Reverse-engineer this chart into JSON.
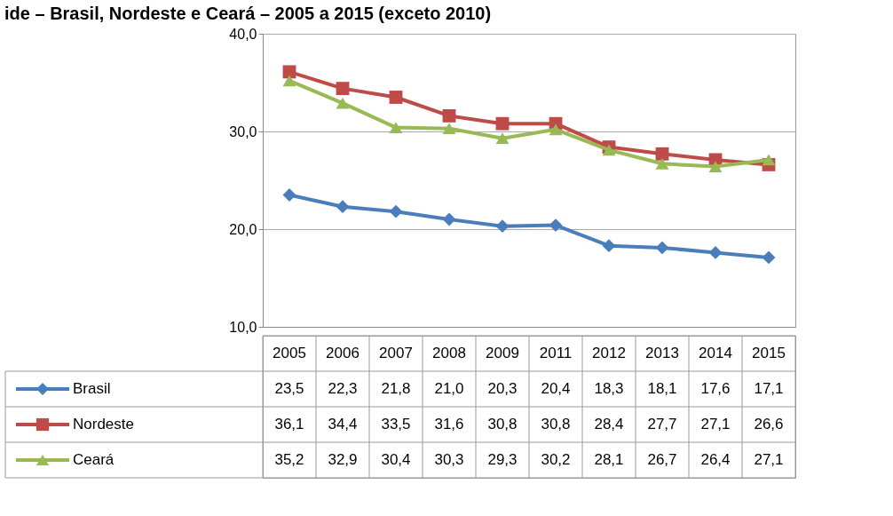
{
  "chart_data": {
    "type": "line",
    "title": "ide – Brasil, Nordeste e Ceará – 2005 a 2015 (exceto 2010)",
    "categories": [
      "2005",
      "2006",
      "2007",
      "2008",
      "2009",
      "2011",
      "2012",
      "2013",
      "2014",
      "2015"
    ],
    "series": [
      {
        "name": "Brasil",
        "color": "#4a7ebb",
        "marker": "diamond",
        "values": [
          23.5,
          22.3,
          21.8,
          21.0,
          20.3,
          20.4,
          18.3,
          18.1,
          17.6,
          17.1
        ],
        "value_labels": [
          "23,5",
          "22,3",
          "21,8",
          "21,0",
          "20,3",
          "20,4",
          "18,3",
          "18,1",
          "17,6",
          "17,1"
        ]
      },
      {
        "name": "Nordeste",
        "color": "#be4b48",
        "marker": "square",
        "values": [
          36.1,
          34.4,
          33.5,
          31.6,
          30.8,
          30.8,
          28.4,
          27.7,
          27.1,
          26.6
        ],
        "value_labels": [
          "36,1",
          "34,4",
          "33,5",
          "31,6",
          "30,8",
          "30,8",
          "28,4",
          "27,7",
          "27,1",
          "26,6"
        ]
      },
      {
        "name": "Ceará",
        "color": "#98b954",
        "marker": "triangle",
        "values": [
          35.2,
          32.9,
          30.4,
          30.3,
          29.3,
          30.2,
          28.1,
          26.7,
          26.4,
          27.1
        ],
        "value_labels": [
          "35,2",
          "32,9",
          "30,4",
          "30,3",
          "29,3",
          "30,2",
          "28,1",
          "26,7",
          "26,4",
          "27,1"
        ]
      }
    ],
    "ylim": [
      10,
      40
    ],
    "yticks": [
      {
        "value": 10,
        "label": "10,0"
      },
      {
        "value": 20,
        "label": "20,0"
      },
      {
        "value": 30,
        "label": "30,0"
      },
      {
        "value": 40,
        "label": "40,0"
      }
    ],
    "grid": "y",
    "legend": "bottom",
    "line_style": "solid"
  }
}
